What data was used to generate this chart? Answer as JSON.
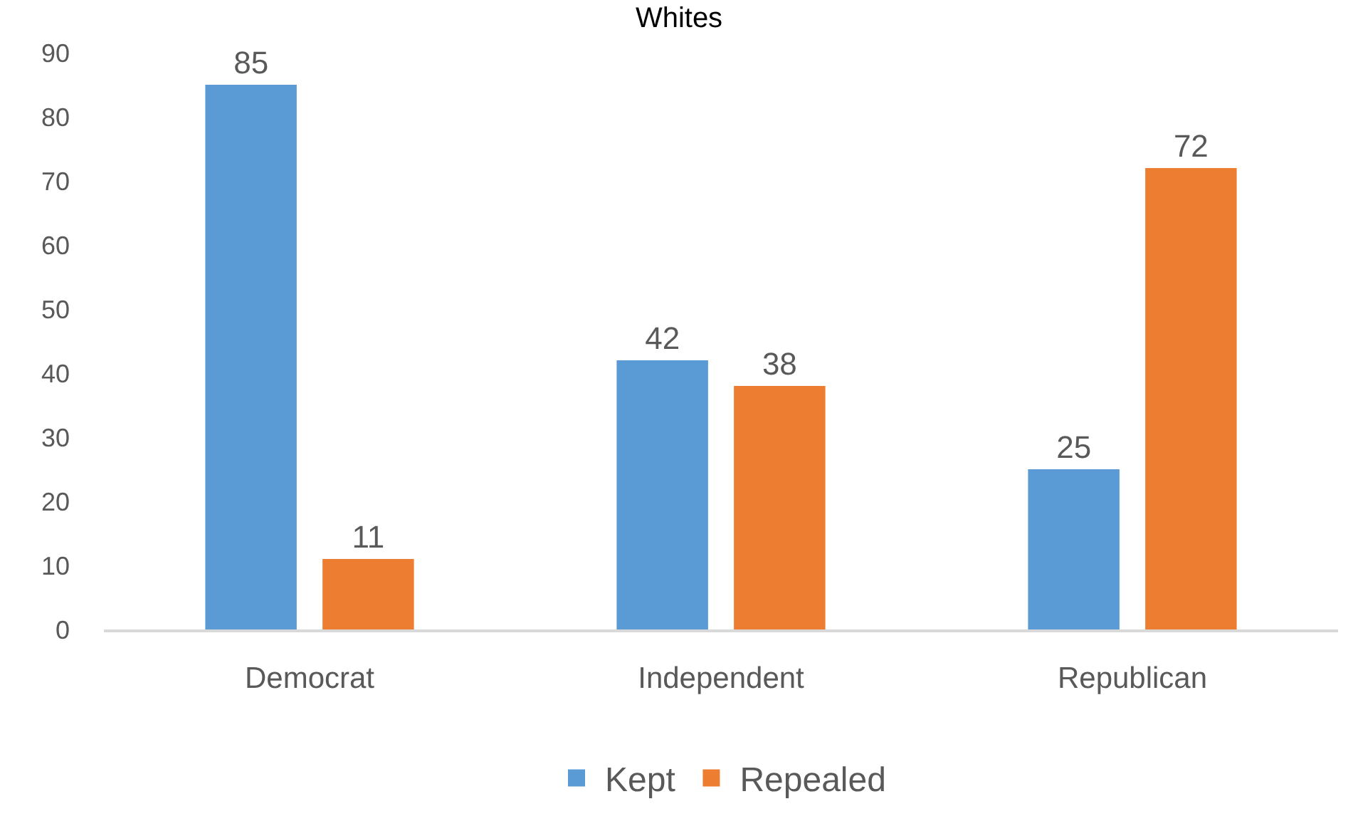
{
  "chart_data": {
    "type": "bar",
    "title": "Whites",
    "categories": [
      "Democrat",
      "Independent",
      "Republican"
    ],
    "series": [
      {
        "name": "Kept",
        "color": "#5b9bd5",
        "values": [
          85,
          42,
          25
        ]
      },
      {
        "name": "Repealed",
        "color": "#ed7d31",
        "values": [
          11,
          38,
          72
        ]
      }
    ],
    "ylim": [
      0,
      90
    ],
    "yticks": [
      0,
      10,
      20,
      30,
      40,
      50,
      60,
      70,
      80,
      90
    ],
    "grid": false,
    "legend": "bottom",
    "data_labels": true
  }
}
